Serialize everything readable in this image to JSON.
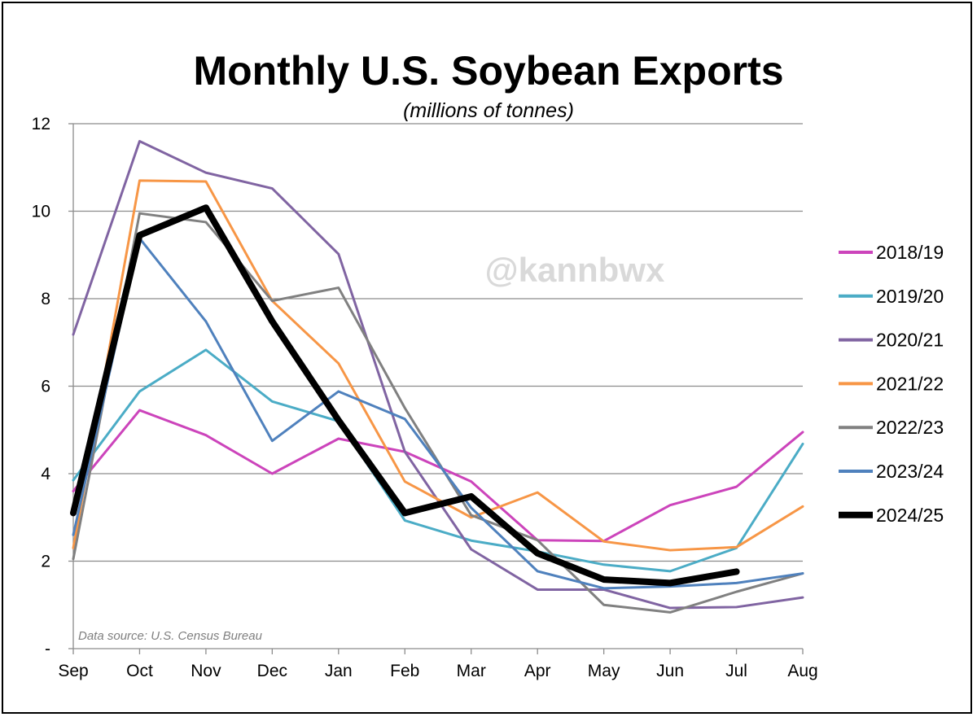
{
  "chart_data": {
    "type": "line",
    "title": "Monthly U.S. Soybean Exports",
    "subtitle": "(millions  of tonnes)",
    "categories": [
      "Sep",
      "Oct",
      "Nov",
      "Dec",
      "Jan",
      "Feb",
      "Mar",
      "Apr",
      "May",
      "Jun",
      "Jul",
      "Aug"
    ],
    "ylim": [
      0,
      12
    ],
    "yticks": [
      0,
      2,
      4,
      6,
      8,
      10,
      12
    ],
    "ytick_labels": [
      "-",
      "2",
      "4",
      "6",
      "8",
      "10",
      "12"
    ],
    "grid": true,
    "legend_position": "right",
    "watermark": "@kannbwx",
    "source_note": "Data source: U.S. Census Bureau",
    "series": [
      {
        "name": "2018/19",
        "color": "#CC44BB",
        "width": 3,
        "values": [
          3.6,
          5.45,
          4.88,
          4.0,
          4.8,
          4.5,
          3.82,
          2.48,
          2.46,
          3.28,
          3.7,
          4.95
        ]
      },
      {
        "name": "2019/20",
        "color": "#4BACC6",
        "width": 3,
        "values": [
          3.85,
          5.88,
          6.83,
          5.65,
          5.2,
          2.93,
          2.47,
          2.22,
          1.92,
          1.77,
          2.3,
          4.68
        ]
      },
      {
        "name": "2020/21",
        "color": "#8064A2",
        "width": 3,
        "values": [
          7.18,
          11.6,
          10.88,
          10.52,
          9.02,
          4.5,
          2.27,
          1.35,
          1.35,
          0.93,
          0.95,
          1.17
        ]
      },
      {
        "name": "2021/22",
        "color": "#F79646",
        "width": 3,
        "values": [
          2.3,
          10.7,
          10.68,
          7.95,
          6.52,
          3.82,
          3.0,
          3.57,
          2.45,
          2.25,
          2.32,
          3.25
        ]
      },
      {
        "name": "2022/23",
        "color": "#808080",
        "width": 3,
        "values": [
          2.05,
          9.95,
          9.75,
          7.95,
          8.25,
          5.5,
          3.05,
          2.48,
          1.0,
          0.83,
          1.3,
          1.72
        ]
      },
      {
        "name": "2023/24",
        "color": "#4F81BD",
        "width": 3,
        "values": [
          2.6,
          9.38,
          7.48,
          4.75,
          5.88,
          5.25,
          3.22,
          1.77,
          1.38,
          1.42,
          1.5,
          1.72
        ]
      },
      {
        "name": "2024/25",
        "color": "#000000",
        "width": 8,
        "values": [
          3.1,
          9.45,
          10.08,
          7.48,
          5.22,
          3.1,
          3.48,
          2.18,
          1.58,
          1.5,
          1.76,
          null
        ]
      }
    ]
  }
}
